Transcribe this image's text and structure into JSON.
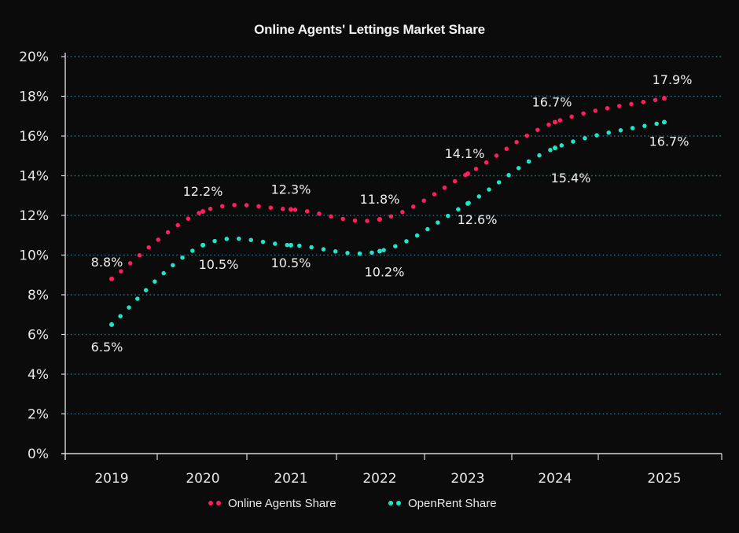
{
  "chart_data": {
    "type": "line",
    "title": "Online Agents' Lettings Market Share",
    "xlabel": "",
    "ylabel": "",
    "categories": [
      "2019",
      "2020",
      "2021",
      "2022",
      "2023",
      "2024",
      "2025"
    ],
    "ylim": [
      0,
      20
    ],
    "yticks": [
      "0%",
      "2%",
      "4%",
      "6%",
      "8%",
      "10%",
      "12%",
      "14%",
      "16%",
      "18%",
      "20%"
    ],
    "grid": true,
    "line_style": "dotted",
    "legend_position": "bottom",
    "series": [
      {
        "name": "Online Agents Share",
        "color": "#ff1f5e",
        "values": [
          8.8,
          12.2,
          12.3,
          11.8,
          14.1,
          16.7,
          17.9
        ],
        "labels": [
          "8.8%",
          "12.2%",
          "12.3%",
          "11.8%",
          "14.1%",
          "16.7%",
          "17.9%"
        ]
      },
      {
        "name": "OpenRent Share",
        "color": "#1fe6c8",
        "values": [
          6.5,
          10.5,
          10.5,
          10.2,
          12.6,
          15.4,
          16.7
        ],
        "labels": [
          "6.5%",
          "10.5%",
          "10.5%",
          "10.2%",
          "12.6%",
          "15.4%",
          "16.7%"
        ]
      }
    ],
    "colors": {
      "background": "#0b0b0b",
      "gridline": "#1f6f8f",
      "axis": "#d8d8d8",
      "text": "#ececec"
    }
  }
}
